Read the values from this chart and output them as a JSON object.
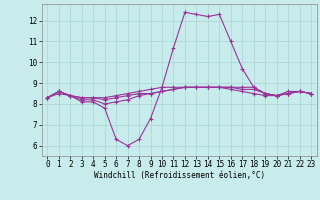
{
  "xlabel": "Windchill (Refroidissement éolien,°C)",
  "background_color": "#c8ecec",
  "grid_color": "#aad4d4",
  "line_color": "#993399",
  "xlim_min": -0.5,
  "xlim_max": 23.5,
  "ylim_min": 5.5,
  "ylim_max": 12.8,
  "yticks": [
    6,
    7,
    8,
    9,
    10,
    11,
    12
  ],
  "xticks": [
    0,
    1,
    2,
    3,
    4,
    5,
    6,
    7,
    8,
    9,
    10,
    11,
    12,
    13,
    14,
    15,
    16,
    17,
    18,
    19,
    20,
    21,
    22,
    23
  ],
  "series": [
    [
      8.3,
      8.6,
      8.4,
      8.1,
      8.1,
      7.8,
      6.3,
      6.0,
      6.3,
      7.3,
      8.8,
      10.7,
      12.4,
      12.3,
      12.2,
      12.3,
      11.0,
      9.7,
      8.8,
      8.5,
      8.4,
      8.6,
      8.6,
      8.5
    ],
    [
      8.3,
      8.6,
      8.4,
      8.2,
      8.2,
      8.0,
      8.1,
      8.2,
      8.4,
      8.5,
      8.6,
      8.7,
      8.8,
      8.8,
      8.8,
      8.8,
      8.7,
      8.6,
      8.5,
      8.4,
      8.4,
      8.5,
      8.6,
      8.5
    ],
    [
      8.3,
      8.6,
      8.4,
      8.3,
      8.3,
      8.2,
      8.3,
      8.4,
      8.5,
      8.5,
      8.6,
      8.7,
      8.8,
      8.8,
      8.8,
      8.8,
      8.8,
      8.7,
      8.7,
      8.5,
      8.4,
      8.5,
      8.6,
      8.5
    ],
    [
      8.3,
      8.5,
      8.4,
      8.3,
      8.3,
      8.3,
      8.4,
      8.5,
      8.6,
      8.7,
      8.8,
      8.8,
      8.8,
      8.8,
      8.8,
      8.8,
      8.8,
      8.8,
      8.8,
      8.5,
      8.4,
      8.5,
      8.6,
      8.5
    ]
  ],
  "tick_fontsize": 5.5,
  "xlabel_fontsize": 5.5,
  "marker": "+",
  "markersize": 2.5,
  "linewidth": 0.8
}
